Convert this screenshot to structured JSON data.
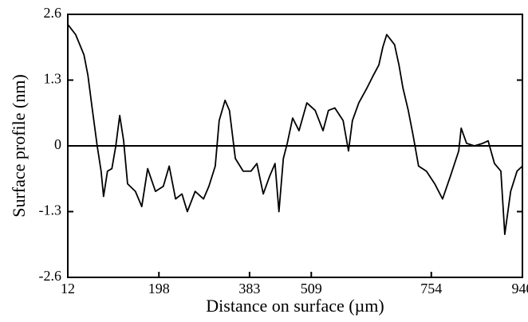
{
  "chart_data": {
    "type": "line",
    "xlabel": "Distance on surface (µm)",
    "ylabel": "Surface profile (nm)",
    "x": [
      12,
      28,
      45,
      53,
      61,
      72,
      80,
      85,
      93,
      102,
      110,
      118,
      126,
      134,
      150,
      163,
      175,
      191,
      207,
      219,
      232,
      245,
      256,
      272,
      289,
      300,
      313,
      321,
      333,
      342,
      354,
      370,
      386,
      398,
      411,
      424,
      435,
      443,
      452,
      460,
      471,
      484,
      500,
      517,
      533,
      544,
      557,
      574,
      585,
      593,
      606,
      623,
      636,
      647,
      655,
      663,
      671,
      679,
      688,
      696,
      707,
      717,
      728,
      744,
      761,
      777,
      793,
      810,
      815,
      826,
      842,
      859,
      870,
      883,
      896,
      904,
      916,
      929,
      940
    ],
    "series": [
      {
        "name": "profile",
        "color": "#000000",
        "values": [
          2.4,
          2.2,
          1.8,
          1.4,
          0.8,
          0,
          -0.5,
          -1.0,
          -0.5,
          -0.45,
          0,
          0.6,
          0.1,
          -0.75,
          -0.9,
          -1.2,
          -0.45,
          -0.9,
          -0.8,
          -0.4,
          -1.05,
          -0.95,
          -1.3,
          -0.9,
          -1.05,
          -0.8,
          -0.4,
          0.5,
          0.9,
          0.7,
          -0.25,
          -0.5,
          -0.5,
          -0.35,
          -0.95,
          -0.6,
          -0.35,
          -1.3,
          -0.25,
          0.05,
          0.55,
          0.3,
          0.85,
          0.7,
          0.3,
          0.7,
          0.75,
          0.5,
          -0.1,
          0.5,
          0.85,
          1.15,
          1.4,
          1.6,
          1.95,
          2.2,
          2.1,
          2.0,
          1.6,
          1.15,
          0.7,
          0.2,
          -0.4,
          -0.5,
          -0.75,
          -1.05,
          -0.6,
          -0.1,
          0.35,
          0.05,
          0,
          0.05,
          0.1,
          -0.35,
          -0.5,
          -1.75,
          -0.9,
          -0.5,
          -0.4
        ]
      }
    ],
    "xlim": [
      12,
      940
    ],
    "xticks": [
      12,
      198,
      383,
      509,
      754,
      940
    ],
    "ylim": [
      -2.6,
      2.6
    ],
    "yticks": [
      -2.6,
      -1.3,
      0,
      1.3,
      2.6
    ],
    "zero_line": true
  }
}
